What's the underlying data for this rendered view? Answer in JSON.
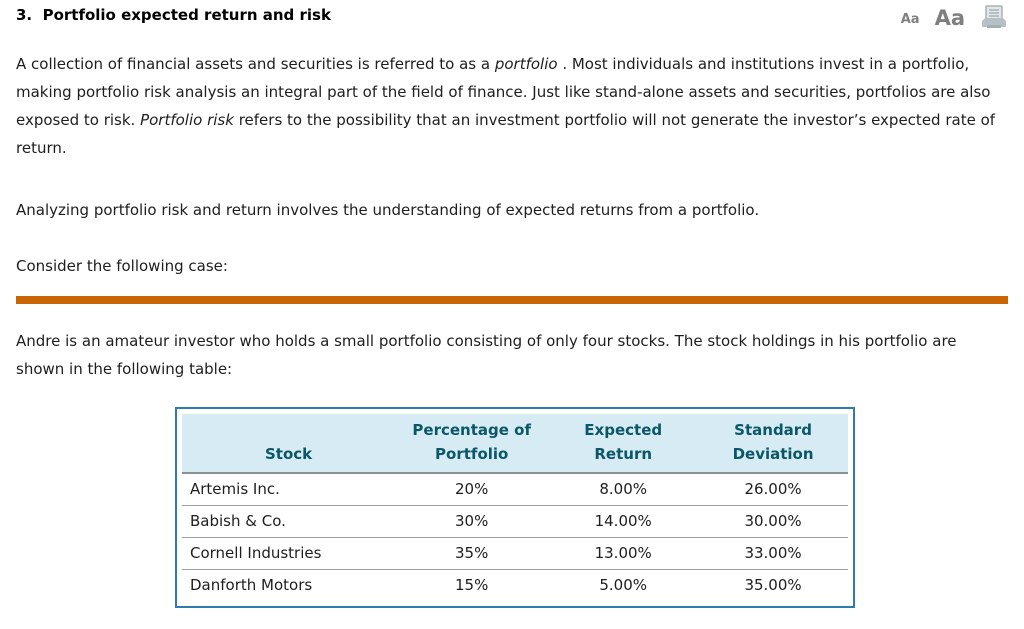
{
  "header": {
    "title": "3.  Portfolio expected return and risk",
    "font_small_label": "Aa",
    "font_large_label": "Aa",
    "printer_icon": "printer-icon"
  },
  "colors": {
    "accent_orange": "#C86504",
    "table_border": "#2E7CAE",
    "table_header_bg": "#D7EBF5",
    "table_header_text": "#0A5766",
    "control_gray": "#7F7F7F",
    "body_text": "#1E1E1E"
  },
  "paragraphs": {
    "intro_runs": [
      {
        "text": "A collection of financial assets and securities is referred to as a ",
        "italic": false
      },
      {
        "text": "portfolio",
        "italic": true
      },
      {
        "text": " . Most individuals and institutions invest in a portfolio, making portfolio risk analysis an integral part of the field of finance. Just like stand-alone assets and securities, portfolios are also exposed to risk. ",
        "italic": false
      },
      {
        "text": "Portfolio risk",
        "italic": true
      },
      {
        "text": " refers to the possibility that an investment portfolio will not generate the investor’s expected rate of return.",
        "italic": false
      }
    ],
    "analyzing": "Analyzing portfolio risk and return involves the understanding of expected returns from a portfolio.",
    "consider": "Consider the following case:",
    "case_text": "Andre is an amateur investor who holds a small portfolio consisting of only four stocks. The stock holdings in his portfolio are shown in the following table:"
  },
  "table": {
    "columns": [
      "Stock",
      "Percentage of\nPortfolio",
      "Expected\nReturn",
      "Standard\nDeviation"
    ],
    "column_keys": [
      "stock",
      "percentage-of-portfolio",
      "expected-return",
      "standard-deviation"
    ],
    "rows": [
      [
        "Artemis Inc.",
        "20%",
        "8.00%",
        "26.00%"
      ],
      [
        "Babish & Co.",
        "30%",
        "14.00%",
        "30.00%"
      ],
      [
        "Cornell Industries",
        "35%",
        "13.00%",
        "33.00%"
      ],
      [
        "Danforth Motors",
        "15%",
        "5.00%",
        "35.00%"
      ]
    ]
  }
}
